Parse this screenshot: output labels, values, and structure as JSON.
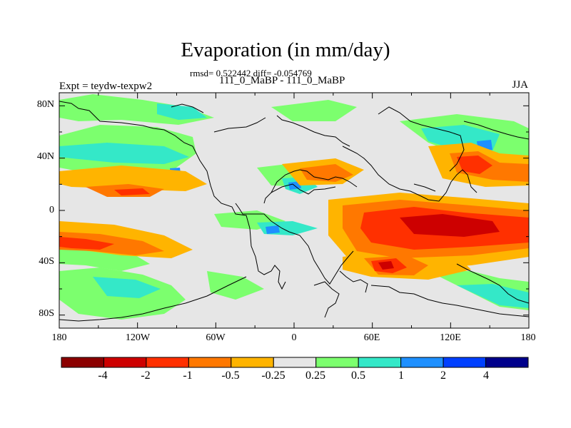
{
  "title": "Evaporation (in mm/day)",
  "subtitle_stats": "rmsd= 0.522442 diff= -0.054769",
  "subtitle_period": "111_0_MaBP - 111_0_MaBP",
  "left_label": "Expt = teydw-texpw2",
  "right_label": "JJA",
  "y_ticks": [
    "80N",
    "40N",
    "0",
    "40S",
    "80S"
  ],
  "x_ticks": [
    "180",
    "120W",
    "60W",
    "0",
    "60E",
    "120E",
    "180"
  ],
  "colorbar": {
    "labels": [
      "-4",
      "-2",
      "-1",
      "-0.5",
      "-0.25",
      "0.25",
      "0.5",
      "1",
      "2",
      "4"
    ],
    "colors": [
      "#8b0000",
      "#cd0000",
      "#ff3000",
      "#ff7800",
      "#ffb400",
      "#e6e6e6",
      "#7cff6e",
      "#34e8c8",
      "#1e90ff",
      "#0040ff",
      "#00008b"
    ]
  }
}
